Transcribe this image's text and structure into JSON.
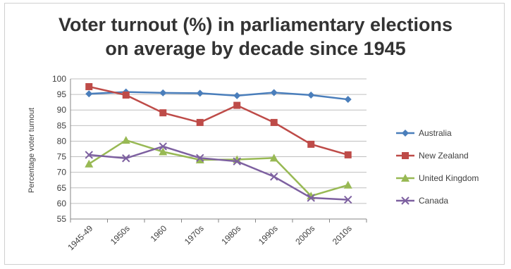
{
  "chart_data": {
    "type": "line",
    "title_lines": [
      "Voter turnout (%) in parliamentary elections",
      "on average by decade since 1945"
    ],
    "xlabel": "",
    "ylabel": "Percentage voter turnout",
    "categories": [
      "1945-49",
      "1950s",
      "1960",
      "1970s",
      "1980s",
      "1990s",
      "2000s",
      "2010s"
    ],
    "ylim": [
      55,
      100
    ],
    "yticks": [
      "55",
      "60",
      "65",
      "70",
      "75",
      "80",
      "85",
      "90",
      "95",
      "100"
    ],
    "grid": true,
    "legend_position": "right",
    "series": [
      {
        "name": "Australia",
        "color": "#4a7ebb",
        "marker": "diamond",
        "values": [
          95.2,
          95.8,
          95.5,
          95.4,
          94.6,
          95.6,
          94.8,
          93.4
        ]
      },
      {
        "name": "New Zealand",
        "color": "#be4b48",
        "marker": "square",
        "values": [
          97.5,
          94.8,
          89.1,
          86.0,
          91.5,
          86.0,
          79.0,
          75.6
        ]
      },
      {
        "name": "United Kingdom",
        "color": "#98b954",
        "marker": "triangle",
        "values": [
          72.7,
          80.3,
          76.6,
          74.0,
          74.1,
          74.6,
          62.4,
          65.9
        ]
      },
      {
        "name": "Canada",
        "color": "#7d60a0",
        "marker": "x",
        "values": [
          75.6,
          74.5,
          78.3,
          74.6,
          73.5,
          68.6,
          61.8,
          61.2
        ]
      }
    ]
  }
}
